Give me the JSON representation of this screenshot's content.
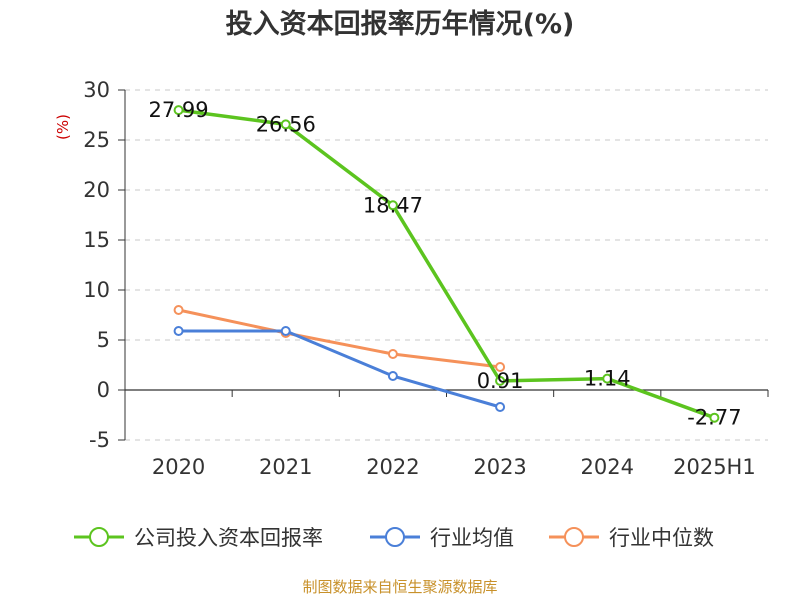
{
  "chart_data": {
    "type": "line",
    "title": "投入资本回报率历年情况(%)",
    "ylabel": "(%)",
    "categories": [
      "2020",
      "2021",
      "2022",
      "2023",
      "2024",
      "2025H1"
    ],
    "ylim": [
      -5,
      30
    ],
    "yticks": [
      30,
      25,
      20,
      15,
      10,
      5,
      0,
      -5
    ],
    "grid": true,
    "legend_position": "bottom",
    "series": [
      {
        "name": "公司投入资本回报率",
        "color": "#5cc41f",
        "values": [
          27.99,
          26.56,
          18.47,
          0.91,
          1.14,
          -2.77
        ],
        "labels": [
          "27.99",
          "26.56",
          "18.47",
          "0.91",
          "1.14",
          "-2.77"
        ]
      },
      {
        "name": "行业均值",
        "color": "#4a7fd8",
        "values": [
          5.9,
          5.9,
          1.4,
          -1.7,
          null,
          null
        ]
      },
      {
        "name": "行业中位数",
        "color": "#f5915a",
        "values": [
          8.0,
          5.7,
          3.6,
          2.3,
          null,
          null
        ]
      }
    ]
  },
  "source_note": "制图数据来自恒生聚源数据库"
}
